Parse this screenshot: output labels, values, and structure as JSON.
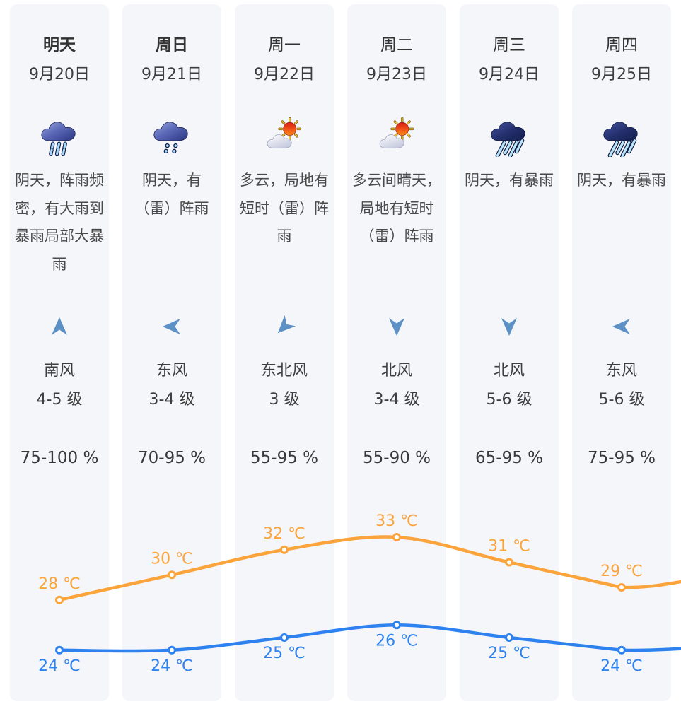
{
  "columns": [
    {
      "day": "明天",
      "emphasis": true,
      "date": "9月20日",
      "icon": "showers",
      "condition": "阴天，阵雨频密，有大雨到暴雨局部大暴雨",
      "wind_arrow": "up",
      "wind_direction": "南风",
      "wind_level": "4-5 级",
      "humidity": "75-100 %"
    },
    {
      "day": "周日",
      "emphasis": true,
      "date": "9月21日",
      "icon": "drizzle",
      "condition": "阴天，有（雷）阵雨",
      "wind_arrow": "left",
      "wind_direction": "东风",
      "wind_level": "3-4 级",
      "humidity": "70-95 %"
    },
    {
      "day": "周一",
      "emphasis": false,
      "date": "9月22日",
      "icon": "sun-cloud",
      "condition": "多云，局地有短时（雷）阵雨",
      "wind_arrow": "down-left",
      "wind_direction": "东北风",
      "wind_level": "3 级",
      "humidity": "55-95 %"
    },
    {
      "day": "周二",
      "emphasis": false,
      "date": "9月23日",
      "icon": "sun-cloud",
      "condition": "多云间晴天，局地有短时（雷）阵雨",
      "wind_arrow": "down",
      "wind_direction": "北风",
      "wind_level": "3-4 级",
      "humidity": "55-90 %"
    },
    {
      "day": "周三",
      "emphasis": false,
      "date": "9月24日",
      "icon": "rainstorm",
      "condition": "阴天，有暴雨",
      "wind_arrow": "down",
      "wind_direction": "北风",
      "wind_level": "5-6 级",
      "humidity": "65-95 %"
    },
    {
      "day": "周四",
      "emphasis": false,
      "date": "9月25日",
      "icon": "rainstorm",
      "condition": "阴天，有暴雨",
      "wind_arrow": "left",
      "wind_direction": "东风",
      "wind_level": "5-6 级",
      "humidity": "75-95 %"
    }
  ],
  "chart_data": {
    "type": "line",
    "categories": [
      "9月20日",
      "9月21日",
      "9月22日",
      "9月23日",
      "9月24日",
      "9月25日"
    ],
    "series": [
      {
        "name": "high",
        "values": [
          28,
          30,
          32,
          33,
          31,
          29
        ],
        "color": "#fba43b"
      },
      {
        "name": "low",
        "values": [
          24,
          24,
          25,
          26,
          25,
          24
        ],
        "color": "#2e82f0"
      }
    ],
    "unit": "℃",
    "label_format": "{value} ℃",
    "smooth": true,
    "grid": false,
    "legend": "none"
  },
  "colors": {
    "card_bg": "#f5f6fa",
    "text_primary": "#333333",
    "text_secondary": "#4a4a4a",
    "wind_arrow": "#5d90c5",
    "high_line": "#fba43b",
    "low_line": "#2e82f0"
  }
}
